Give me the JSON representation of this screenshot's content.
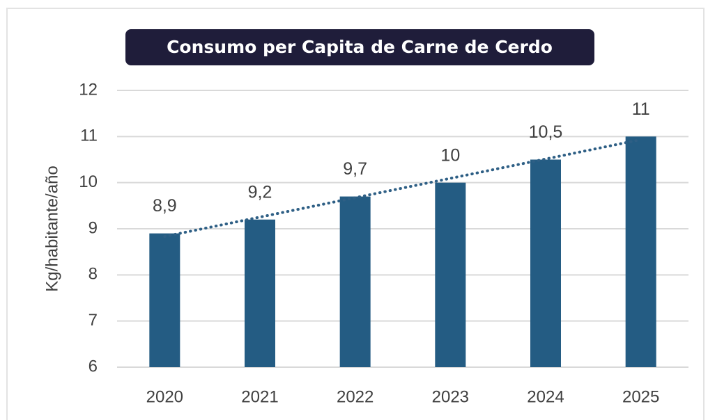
{
  "chart_data": {
    "type": "bar",
    "title": "Consumo per Capita de Carne de Cerdo",
    "y_label": "Kg/habitante/año",
    "categories": [
      "2020",
      "2021",
      "2022",
      "2023",
      "2024",
      "2025"
    ],
    "values": [
      8.9,
      9.2,
      9.7,
      10,
      10.5,
      11
    ],
    "value_labels": [
      "8,9",
      "9,2",
      "9,7",
      "10",
      "10,5",
      "11"
    ],
    "color": "#245c83",
    "ylim": [
      6,
      12
    ],
    "yticks": [
      6,
      7,
      8,
      9,
      10,
      11,
      12
    ],
    "grid": true,
    "trendline": true,
    "trendline_color": "#2e5f85"
  }
}
